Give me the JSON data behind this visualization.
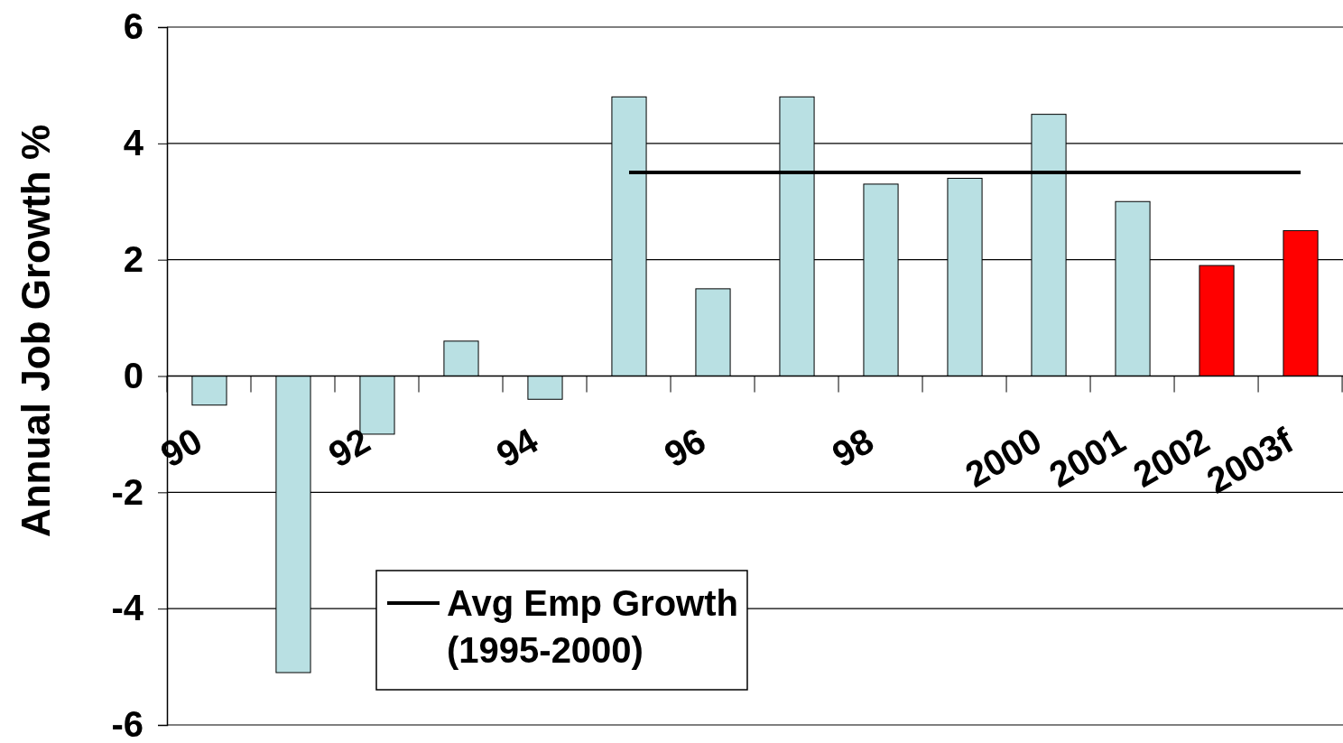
{
  "chart_data": {
    "type": "bar",
    "ylabel": "Annual Job Growth %",
    "categories": [
      "90",
      null,
      "92",
      null,
      "94",
      null,
      "96",
      null,
      "98",
      null,
      "2000",
      "2001",
      "2002",
      "2003f"
    ],
    "series": [
      {
        "colors": [
          "#b9e0e3",
          "#b9e0e3",
          "#b9e0e3",
          "#b9e0e3",
          "#b9e0e3",
          "#b9e0e3",
          "#b9e0e3",
          "#b9e0e3",
          "#b9e0e3",
          "#b9e0e3",
          "#b9e0e3",
          "#b9e0e3",
          "#ff0000",
          "#ff0000"
        ],
        "values": [
          -0.5,
          -5.1,
          -1.0,
          0.6,
          -0.4,
          4.8,
          1.5,
          4.8,
          3.3,
          3.4,
          4.5,
          3.0,
          1.9,
          2.5
        ]
      },
      {
        "type": "line",
        "name": "Avg Emp Growth (1995-2000)",
        "color": "#000000",
        "values": [
          null,
          null,
          null,
          null,
          null,
          3.5,
          3.5,
          3.5,
          3.5,
          3.5,
          3.5,
          3.5,
          3.5,
          3.5
        ]
      }
    ],
    "ylim": [
      -6,
      6
    ],
    "yticks": [
      -6,
      -4,
      -2,
      0,
      2,
      4,
      6
    ],
    "grid": "y",
    "legend": "bottom"
  }
}
